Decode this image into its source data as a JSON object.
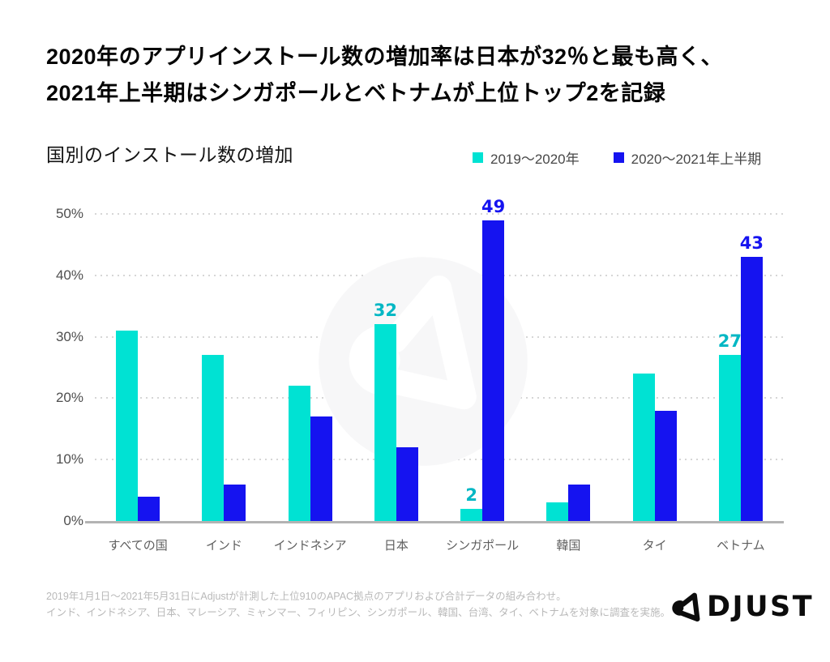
{
  "header": {
    "title_line1": "2020年のアプリインストール数の増加率は日本が32％と最も高く、",
    "title_line2": "2021年上半期はシンガポールとベトナムが上位トップ2を記録"
  },
  "chart_header": {
    "subtitle": "国別のインストール数の増加",
    "legend": [
      {
        "label": "2019〜2020年",
        "color": "#00e2d3"
      },
      {
        "label": "2020〜2021年上半期",
        "color": "#1513f0"
      }
    ]
  },
  "chart_data": {
    "type": "bar",
    "title": "国別のインストール数の増加",
    "categories": [
      "すべての国",
      "インド",
      "インドネシア",
      "日本",
      "シンガポール",
      "韓国",
      "タイ",
      "ベトナム"
    ],
    "series": [
      {
        "name": "2019〜2020年",
        "color": "#00e2d3",
        "label_color": "#00b7c4",
        "values": [
          31,
          27,
          22,
          32,
          2,
          3,
          24,
          27
        ],
        "data_labels": [
          null,
          null,
          null,
          "32",
          "2",
          null,
          null,
          "27"
        ]
      },
      {
        "name": "2020〜2021年上半期",
        "color": "#1513f0",
        "label_color": "#1513f0",
        "values": [
          4,
          6,
          17,
          12,
          49,
          6,
          18,
          43
        ],
        "data_labels": [
          null,
          null,
          null,
          null,
          "49",
          null,
          null,
          "43"
        ]
      }
    ],
    "y_ticks": [
      "0%",
      "10%",
      "20%",
      "30%",
      "40%",
      "50%"
    ],
    "ylim": [
      0,
      50
    ],
    "xlabel": "",
    "ylabel": "",
    "grid": "dotted-horizontal",
    "legend_position": "top-right"
  },
  "footer": {
    "note_line1": "2019年1月1日〜2021年5月31日にAdjustが計測した上位910のAPAC拠点のアプリおよび合計データの組み合わせ。",
    "note_line2": "インド、インドネシア、日本、マレーシア、ミャンマー、フィリピン、シンガポール、韓国、台湾、タイ、ベトナムを対象に調査を実施。",
    "logo_text": "ADJUST"
  }
}
